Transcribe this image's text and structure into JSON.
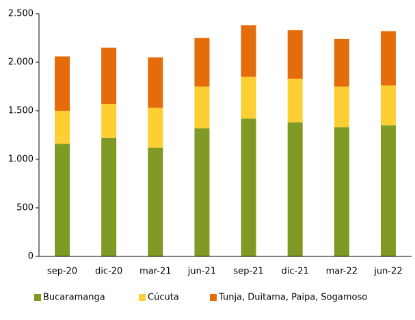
{
  "chart_data": {
    "type": "stacked_bar",
    "categories": [
      "sep-20",
      "dic-20",
      "mar-21",
      "jun-21",
      "sep-21",
      "dic-21",
      "mar-22",
      "jun-22"
    ],
    "series": [
      {
        "name": "Bucaramanga",
        "color": "#7f9a24",
        "values": [
          1160,
          1220,
          1120,
          1320,
          1420,
          1380,
          1330,
          1350
        ]
      },
      {
        "name": "Cúcuta",
        "color": "#fdcf33",
        "values": [
          340,
          350,
          410,
          430,
          430,
          450,
          420,
          410
        ]
      },
      {
        "name": "Tunja, Duitama, Paipa, Sogamoso",
        "color": "#e46c0a",
        "values": [
          560,
          580,
          520,
          500,
          530,
          500,
          490,
          560
        ]
      }
    ],
    "ylim": [
      0,
      2500
    ],
    "yticks": [
      0,
      500,
      {
        "value": 1000,
        "label": "1.000"
      },
      {
        "value": 1500,
        "label": "1.500"
      },
      {
        "value": 2000,
        "label": "2.000"
      },
      {
        "value": 2500,
        "label": "2.500"
      }
    ],
    "grid": false,
    "legend": "bottom"
  }
}
